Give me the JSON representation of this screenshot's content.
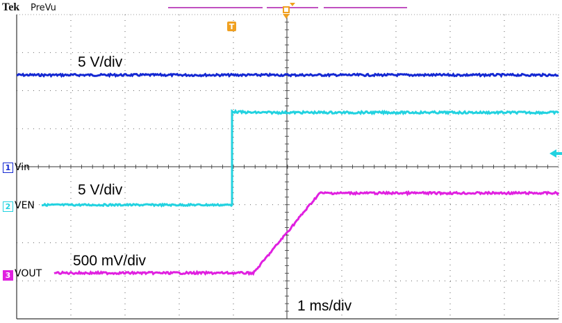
{
  "header": {
    "brand": "Tek",
    "mode": "PreVu"
  },
  "colors": {
    "ch1": "#1428d2",
    "ch2": "#22d2e0",
    "ch3": "#e020e0",
    "trigger": "#f0a020",
    "grid": "#333333",
    "record": "#c050c0"
  },
  "channels": [
    {
      "number": "1",
      "name": "Vin",
      "scale_note": "5 V/div"
    },
    {
      "number": "2",
      "name": "VEN",
      "scale_note": "5 V/div"
    },
    {
      "number": "3",
      "name": "VOUT",
      "scale_note": "500 mV/div"
    }
  ],
  "timebase": {
    "note": "1 ms/div"
  },
  "trigger": {
    "marker": "T"
  },
  "icons": {
    "trigger_marker": "trigger-t-icon",
    "channel_ground": "channel-ground-arrow-icon"
  }
}
